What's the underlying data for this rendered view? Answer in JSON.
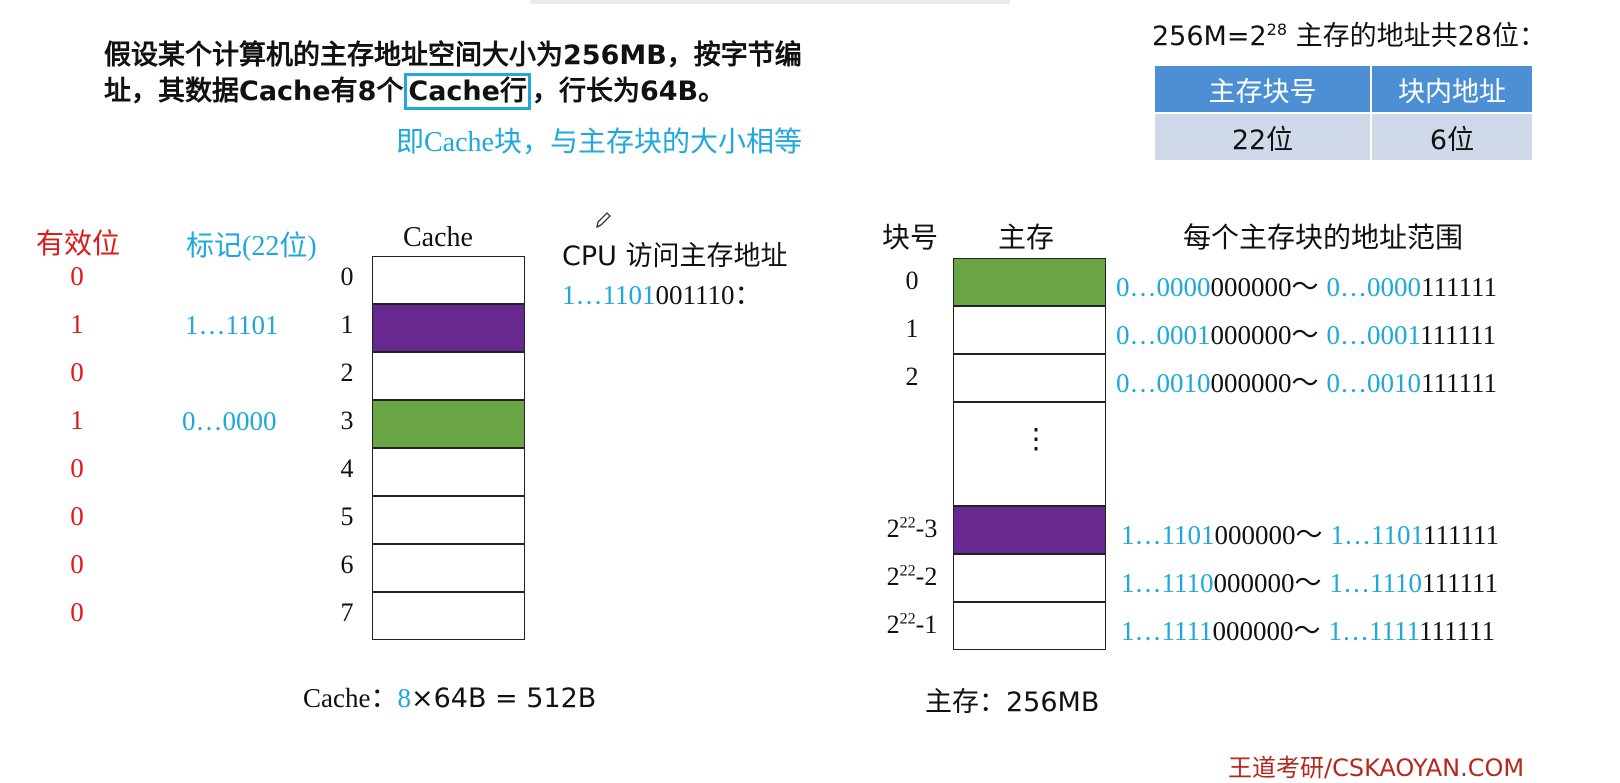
{
  "problem": {
    "line1": "假设某个计算机的主存地址空间大小为256MB，按字节编",
    "line2_prefix": "址，其数据Cache有8个",
    "line2_boxed": "Cache行",
    "line2_suffix": "，行长为64B。",
    "note": "即Cache块，与主存块的大小相等"
  },
  "address_format": {
    "formula_prefix": "256M=2",
    "formula_exponent": "28",
    "formula_suffix": " 主存的地址共28位：",
    "headers": [
      "主存块号",
      "块内地址"
    ],
    "values": [
      "22位",
      "6位"
    ]
  },
  "cache": {
    "valid_header": "有效位",
    "tag_header": "标记(22位)",
    "title": "Cache",
    "line_indices": [
      "0",
      "1",
      "2",
      "3",
      "4",
      "5",
      "6",
      "7"
    ],
    "valid_bits": [
      "0",
      "1",
      "0",
      "1",
      "0",
      "0",
      "0",
      "0"
    ],
    "tags": [
      "",
      "1…1101",
      "",
      "0…0000",
      "",
      "",
      "",
      ""
    ],
    "line_colors": [
      "#ffffff",
      "#67298f",
      "#ffffff",
      "#6aa543",
      "#ffffff",
      "#ffffff",
      "#ffffff",
      "#ffffff"
    ],
    "caption_prefix": "Cache：",
    "caption_count": "8",
    "caption_suffix": "×64B = 512B"
  },
  "cpu": {
    "label": "CPU 访问主存地址",
    "address_tag_part": "1…1101",
    "address_offset_part": "001110："
  },
  "memory": {
    "block_header": "块号",
    "title": "主存",
    "range_header": "每个主存块的地址范围",
    "ellipsis": "⋮",
    "caption": "主存：256MB",
    "blocks": [
      {
        "index": "0",
        "color": "#6aa543",
        "start_prefix": "0…0000",
        "start_suffix": "000000～",
        "end_prefix": "0…0000",
        "end_suffix": "111111"
      },
      {
        "index": "1",
        "color": "#ffffff",
        "start_prefix": "0…0001",
        "start_suffix": "000000～",
        "end_prefix": "0…0001",
        "end_suffix": "111111"
      },
      {
        "index": "2",
        "color": "#ffffff",
        "start_prefix": "0…0010",
        "start_suffix": "000000～",
        "end_prefix": "0…0010",
        "end_suffix": "111111"
      },
      {
        "index_base": "2",
        "index_exp": "22",
        "index_tail": "-3",
        "color": "#67298f",
        "start_prefix": "1…1101",
        "start_suffix": "000000～",
        "end_prefix": "1…1101",
        "end_suffix": "111111"
      },
      {
        "index_base": "2",
        "index_exp": "22",
        "index_tail": "-2",
        "color": "#ffffff",
        "start_prefix": "1…1110",
        "start_suffix": "000000～",
        "end_prefix": "1…1110",
        "end_suffix": "111111"
      },
      {
        "index_base": "2",
        "index_exp": "22",
        "index_tail": "-1",
        "color": "#ffffff",
        "start_prefix": "1…1111",
        "start_suffix": "000000～",
        "end_prefix": "1…1111",
        "end_suffix": "111111"
      }
    ]
  },
  "icons": {
    "pencil": "pencil-icon"
  },
  "watermark": "王道考研/CSKAOYAN.COM"
}
